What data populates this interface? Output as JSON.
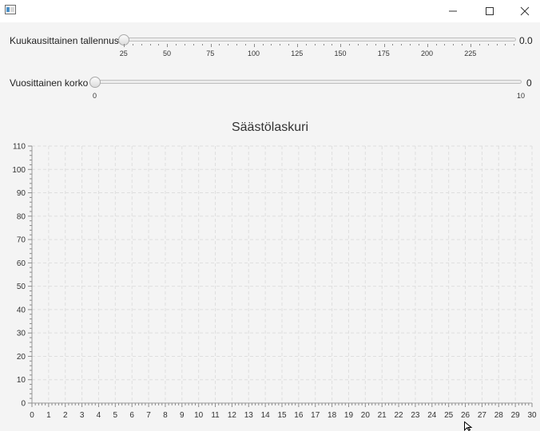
{
  "window": {
    "controls": [
      "minimize",
      "maximize",
      "close"
    ]
  },
  "sliders": [
    {
      "label": "Kuukausittainen tallennus",
      "value_text": "0.0",
      "value": 0,
      "min": 0,
      "max": 250,
      "major_ticks": [
        25,
        50,
        75,
        100,
        125,
        150,
        175,
        200,
        225
      ],
      "minor_step": 5
    },
    {
      "label": "Vuosittainen korko",
      "value_text": "0",
      "value": 0,
      "min": 0,
      "max": 10,
      "tick_labels": [
        0,
        10
      ]
    }
  ],
  "chart_data": {
    "type": "line",
    "title": "Säästölaskuri",
    "xlabel": "",
    "ylabel": "",
    "xlim": [
      0,
      30
    ],
    "ylim": [
      0,
      110
    ],
    "x_ticks": [
      0,
      1,
      2,
      3,
      4,
      5,
      6,
      7,
      8,
      9,
      10,
      11,
      12,
      13,
      14,
      15,
      16,
      17,
      18,
      19,
      20,
      21,
      22,
      23,
      24,
      25,
      26,
      27,
      28,
      29,
      30
    ],
    "y_ticks": [
      0,
      10,
      20,
      30,
      40,
      50,
      60,
      70,
      80,
      90,
      100,
      110
    ],
    "grid": true,
    "series": []
  }
}
